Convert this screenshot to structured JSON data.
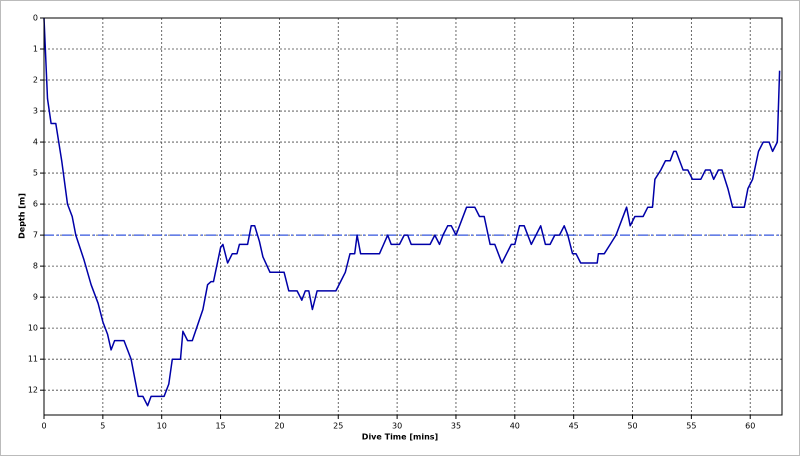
{
  "chart_data": {
    "type": "line",
    "xlabel": "Dive Time [mins]",
    "ylabel": "Depth [m]",
    "x": [
      0,
      0.3,
      0.6,
      1.0,
      1.5,
      2.0,
      2.4,
      2.7,
      3.4,
      4.0,
      4.6,
      5.0,
      5.4,
      5.7,
      6.0,
      6.8,
      7.4,
      8.0,
      8.4,
      8.8,
      9.1,
      10.2,
      10.6,
      10.9,
      11.6,
      11.8,
      12.2,
      12.6,
      13.5,
      13.9,
      14.2,
      14.4,
      15.0,
      15.2,
      15.6,
      16.0,
      16.4,
      16.6,
      17.3,
      17.6,
      17.9,
      18.3,
      18.6,
      19.2,
      20.4,
      20.8,
      21.5,
      21.9,
      22.2,
      22.5,
      22.8,
      23.2,
      24.8,
      25.2,
      25.6,
      26.0,
      26.4,
      26.6,
      26.9,
      28.5,
      29.2,
      29.5,
      30.2,
      30.6,
      30.9,
      31.2,
      32.8,
      33.2,
      33.6,
      33.9,
      34.3,
      34.6,
      35.0,
      35.9,
      36.6,
      37.0,
      37.4,
      37.9,
      38.3,
      38.9,
      39.3,
      39.7,
      40.0,
      40.4,
      40.8,
      41.4,
      41.8,
      42.2,
      42.6,
      43.0,
      43.4,
      43.8,
      44.2,
      44.5,
      44.9,
      45.2,
      45.6,
      47.0,
      47.1,
      47.6,
      48.1,
      48.6,
      49.5,
      49.8,
      50.2,
      50.9,
      51.3,
      51.7,
      51.9,
      52.4,
      52.8,
      53.2,
      53.5,
      53.7,
      54.3,
      54.7,
      55.1,
      55.8,
      56.2,
      56.6,
      56.9,
      57.3,
      57.6,
      58.1,
      58.5,
      59.5,
      59.8,
      60.2,
      60.7,
      61.1,
      61.6,
      61.9,
      62.3,
      62.5
    ],
    "series": [
      {
        "name": "Depth",
        "color": "#0000a8",
        "values": [
          0,
          2.6,
          3.4,
          3.4,
          4.6,
          6.0,
          6.4,
          7.0,
          7.8,
          8.6,
          9.2,
          9.8,
          10.2,
          10.7,
          10.4,
          10.4,
          11.0,
          12.2,
          12.2,
          12.5,
          12.2,
          12.2,
          11.8,
          11.0,
          11.0,
          10.1,
          10.4,
          10.4,
          9.4,
          8.6,
          8.5,
          8.5,
          7.4,
          7.3,
          7.9,
          7.6,
          7.6,
          7.3,
          7.3,
          6.7,
          6.7,
          7.2,
          7.7,
          8.2,
          8.2,
          8.8,
          8.8,
          9.1,
          8.8,
          8.8,
          9.4,
          8.8,
          8.8,
          8.5,
          8.2,
          7.6,
          7.6,
          7.0,
          7.6,
          7.6,
          7.0,
          7.3,
          7.3,
          7.0,
          7.0,
          7.3,
          7.3,
          7.0,
          7.3,
          7.0,
          6.7,
          6.7,
          7.0,
          6.1,
          6.1,
          6.4,
          6.4,
          7.3,
          7.3,
          7.9,
          7.6,
          7.3,
          7.3,
          6.7,
          6.7,
          7.3,
          7.0,
          6.7,
          7.3,
          7.3,
          7.0,
          7.0,
          6.7,
          7.0,
          7.6,
          7.6,
          7.9,
          7.9,
          7.6,
          7.6,
          7.3,
          7.0,
          6.1,
          6.7,
          6.4,
          6.4,
          6.1,
          6.1,
          5.2,
          4.9,
          4.6,
          4.6,
          4.3,
          4.3,
          4.9,
          4.9,
          5.2,
          5.2,
          4.9,
          4.9,
          5.2,
          4.9,
          4.9,
          5.5,
          6.1,
          6.1,
          5.5,
          5.2,
          4.3,
          4.0,
          4.0,
          4.3,
          4.0,
          1.7
        ]
      }
    ],
    "reference_line": {
      "value": 7,
      "color": "#3355dd"
    },
    "xlim": [
      0,
      62.7
    ],
    "xticks": [
      0,
      5,
      10,
      15,
      20,
      25,
      30,
      35,
      40,
      45,
      50,
      55,
      60
    ],
    "ylim": [
      0,
      12.8
    ],
    "yticks": [
      0,
      1,
      2,
      3,
      4,
      5,
      6,
      7,
      8,
      9,
      10,
      11,
      12
    ],
    "y_inverted": true,
    "grid": true
  }
}
